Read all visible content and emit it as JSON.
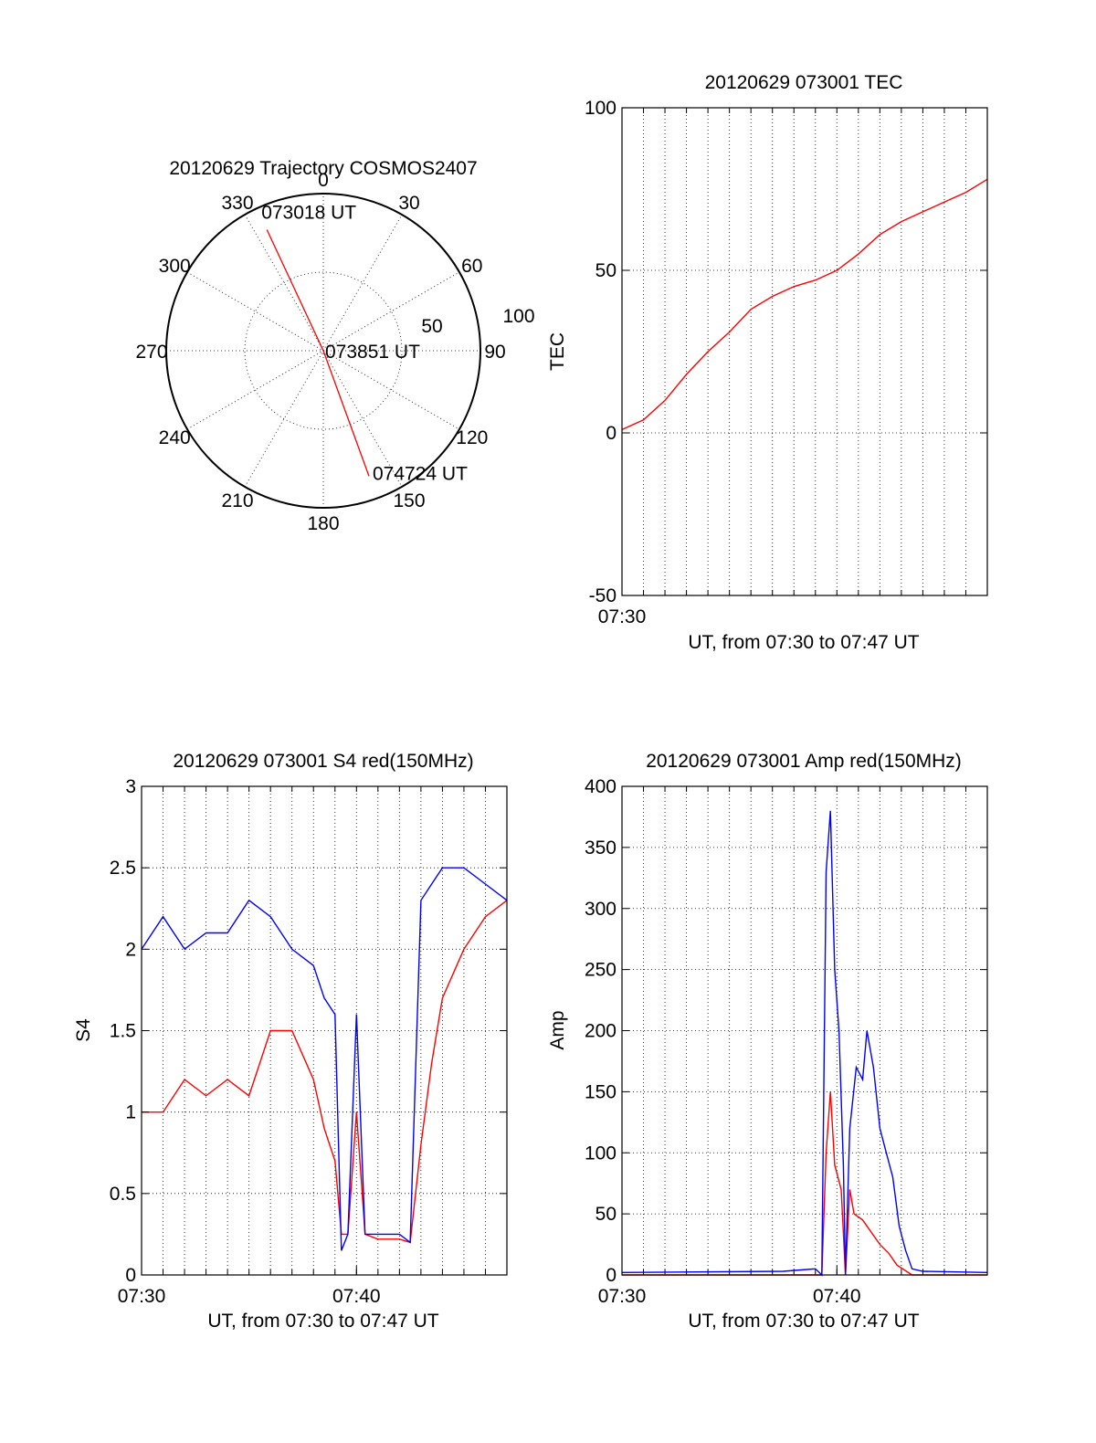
{
  "chart_data": [
    {
      "type": "polar",
      "title": "20120629 Trajectory COSMOS2407",
      "azimuth_labels": [
        "0",
        "30",
        "60",
        "90",
        "120",
        "150",
        "180",
        "210",
        "240",
        "270",
        "300",
        "330"
      ],
      "radial_labels": [
        "50",
        "100"
      ],
      "radial_range": [
        0,
        100
      ],
      "grid": true,
      "series": [
        {
          "color": "#ff0000",
          "points": [
            {
              "azimuth": 335,
              "zenith": 85,
              "label": "073018 UT"
            },
            {
              "azimuth": 0,
              "zenith": 0,
              "label": "073851 UT"
            },
            {
              "azimuth": 160,
              "zenith": 85,
              "label": "074724 UT"
            }
          ]
        }
      ]
    },
    {
      "type": "line",
      "title": "20120629 073001 TEC",
      "xlabel": "UT, from 07:30 to 07:47 UT",
      "ylabel": "TEC",
      "xlim": [
        0,
        17
      ],
      "ylim": [
        -50,
        100
      ],
      "xticks": [
        "07:30"
      ],
      "yticks": [
        "-50",
        "0",
        "50",
        "100"
      ],
      "grid": true,
      "series": [
        {
          "color": "#ff0000",
          "x": [
            0,
            1,
            2,
            3,
            4,
            5,
            6,
            7,
            8,
            9,
            10,
            11,
            12,
            13,
            14,
            15,
            16,
            17
          ],
          "y": [
            1,
            4,
            10,
            18,
            25,
            31,
            38,
            42,
            45,
            47,
            50,
            55,
            61,
            65,
            68,
            71,
            74,
            78
          ]
        }
      ]
    },
    {
      "type": "line",
      "title": "20120629 073001 S4 red(150MHz)",
      "xlabel": "UT, from 07:30 to 07:47 UT",
      "ylabel": "S4",
      "xlim": [
        0,
        17
      ],
      "ylim": [
        0,
        3
      ],
      "xticks": [
        "07:30",
        "07:40"
      ],
      "yticks": [
        "0",
        "0.5",
        "1",
        "1.5",
        "2",
        "2.5",
        "3"
      ],
      "grid": true,
      "series": [
        {
          "color": "#ff0000",
          "x": [
            0,
            1,
            2,
            3,
            4,
            5,
            6,
            7,
            8,
            8.5,
            9,
            9.3,
            9.6,
            10,
            10.4,
            11,
            12,
            12.5,
            13,
            13.5,
            14,
            15,
            16,
            17
          ],
          "y": [
            1.0,
            1.0,
            1.2,
            1.1,
            1.2,
            1.1,
            1.5,
            1.5,
            1.2,
            0.9,
            0.7,
            0.25,
            0.25,
            1.0,
            0.25,
            0.22,
            0.22,
            0.2,
            0.8,
            1.3,
            1.7,
            2.0,
            2.2,
            2.3
          ]
        },
        {
          "color": "#0000ff",
          "x": [
            0,
            1,
            2,
            3,
            4,
            5,
            6,
            7,
            8,
            8.5,
            9,
            9.3,
            9.6,
            10,
            10.4,
            11,
            12,
            12.5,
            13,
            13.5,
            14,
            15,
            16,
            17
          ],
          "y": [
            2.0,
            2.2,
            2.0,
            2.1,
            2.1,
            2.3,
            2.2,
            2.0,
            1.9,
            1.7,
            1.6,
            0.15,
            0.25,
            1.6,
            0.25,
            0.25,
            0.25,
            0.2,
            2.3,
            2.4,
            2.5,
            2.5,
            2.4,
            2.3
          ]
        }
      ]
    },
    {
      "type": "line",
      "title": "20120629 073001 Amp red(150MHz)",
      "xlabel": "UT, from 07:30 to 07:47 UT",
      "ylabel": "Amp",
      "xlim": [
        0,
        17
      ],
      "ylim": [
        0,
        400
      ],
      "xticks": [
        "07:30",
        "07:40"
      ],
      "yticks": [
        "0",
        "50",
        "100",
        "150",
        "200",
        "250",
        "300",
        "350",
        "400"
      ],
      "grid": true,
      "series": [
        {
          "color": "#ff0000",
          "x": [
            0,
            9.3,
            9.5,
            9.7,
            9.9,
            10.2,
            10.4,
            10.6,
            10.8,
            11.2,
            11.6,
            12,
            12.4,
            12.8,
            13.5,
            17
          ],
          "y": [
            0,
            0,
            100,
            150,
            90,
            70,
            0,
            70,
            50,
            45,
            35,
            25,
            18,
            8,
            0,
            0
          ]
        },
        {
          "color": "#0000ff",
          "x": [
            0,
            7.5,
            9.0,
            9.3,
            9.5,
            9.7,
            9.9,
            10.1,
            10.3,
            10.4,
            10.6,
            10.9,
            11.2,
            11.4,
            11.7,
            12.0,
            12.3,
            12.6,
            12.9,
            13.2,
            13.5,
            14,
            17
          ],
          "y": [
            2,
            3,
            5,
            0,
            330,
            380,
            250,
            200,
            90,
            0,
            120,
            170,
            160,
            200,
            170,
            120,
            100,
            80,
            40,
            20,
            5,
            3,
            2
          ]
        }
      ]
    }
  ]
}
